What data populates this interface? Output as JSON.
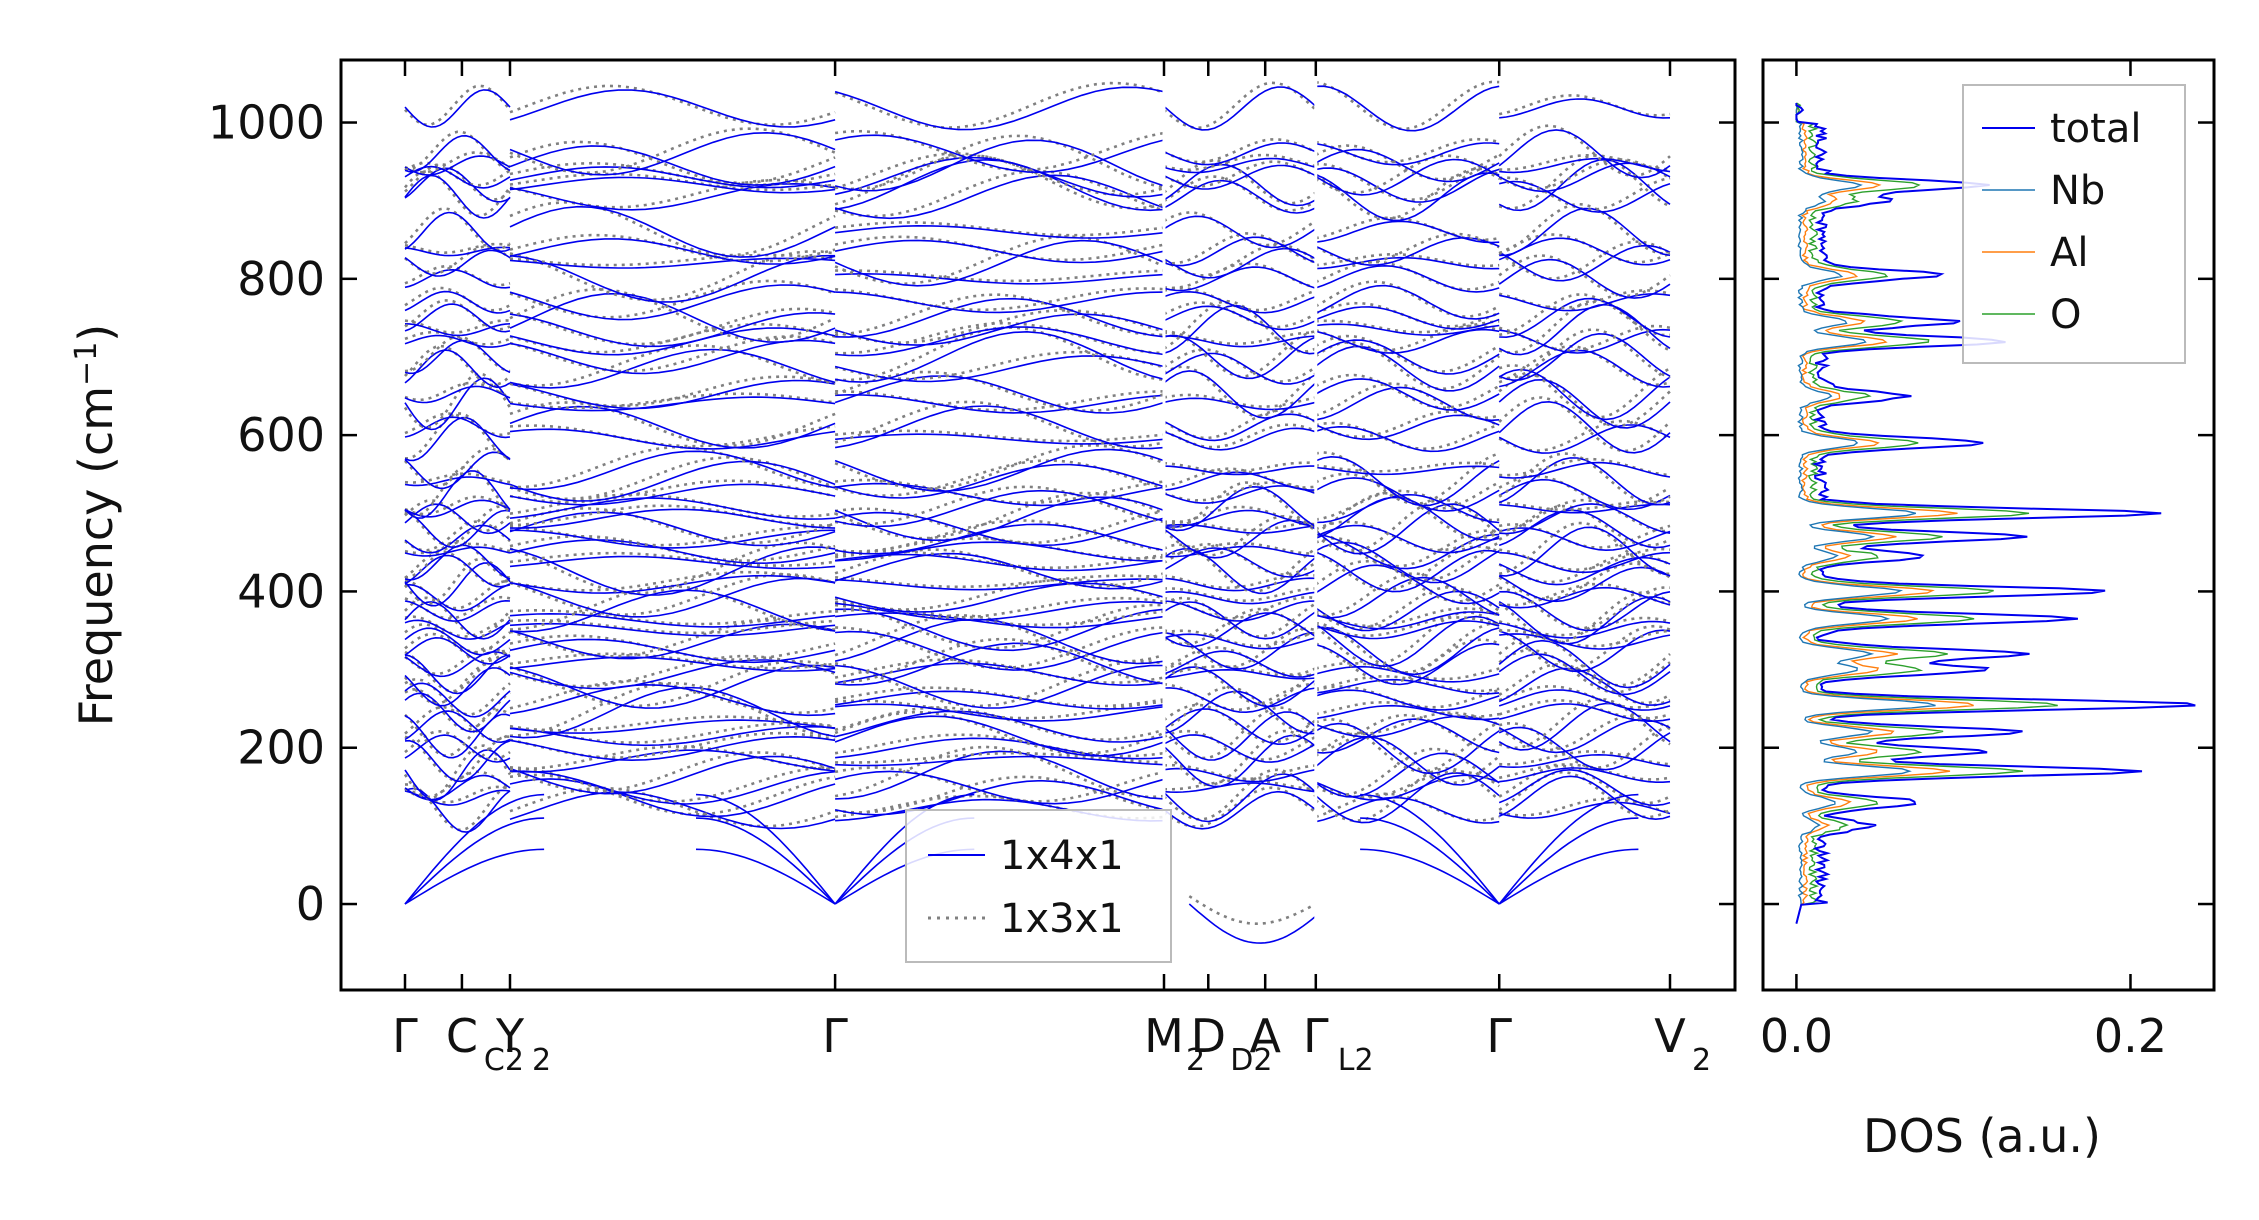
{
  "chart_data": [
    {
      "type": "line",
      "ylabel": "Frequency (cm",
      "ylabel_sup": "−1",
      "ylabel_close": ")",
      "ylim": [
        -110,
        1080
      ],
      "yticks": [
        {
          "value": 0,
          "label": "0"
        },
        {
          "value": 200,
          "label": "200"
        },
        {
          "value": 400,
          "label": "400"
        },
        {
          "value": 600,
          "label": "600"
        },
        {
          "value": 800,
          "label": "800"
        },
        {
          "value": 1000,
          "label": "1000"
        }
      ],
      "path_breaks": [
        {
          "pos": 0.0,
          "label": "Γ"
        },
        {
          "pos": 0.045,
          "label": "C",
          "sub": "C2"
        },
        {
          "pos": 0.083,
          "label": "Y",
          "sub": "2"
        },
        {
          "pos": 0.34,
          "label": "Γ"
        },
        {
          "pos": 0.6,
          "label": "M",
          "sub": "2"
        },
        {
          "pos": 0.635,
          "label": "D",
          "sub": "D2"
        },
        {
          "pos": 0.68,
          "label": "A"
        },
        {
          "pos": 0.72,
          "label": "Γ",
          "sub": "L2"
        },
        {
          "pos": 0.865,
          "label": "Γ"
        },
        {
          "pos": 1.0,
          "label": "V",
          "sub": "2"
        }
      ],
      "series": [
        {
          "name": "1x4x1",
          "color": "#0000ee",
          "style": "solid"
        },
        {
          "name": "1x3x1",
          "color": "#808080",
          "style": "dotted"
        }
      ],
      "legend_position": "lower-center"
    },
    {
      "type": "line",
      "xlabel": "DOS (a.u.)",
      "xlim": [
        -0.02,
        0.25
      ],
      "xticks": [
        {
          "value": 0.0,
          "label": "0.0"
        },
        {
          "value": 0.2,
          "label": "0.2"
        }
      ],
      "ylim": [
        -110,
        1080
      ],
      "series": [
        {
          "name": "total",
          "color": "#0000ee"
        },
        {
          "name": "Nb",
          "color": "#1f77b4"
        },
        {
          "name": "Al",
          "color": "#ff7f0e"
        },
        {
          "name": "O",
          "color": "#2ca02c"
        }
      ],
      "legend_position": "top-right"
    }
  ]
}
